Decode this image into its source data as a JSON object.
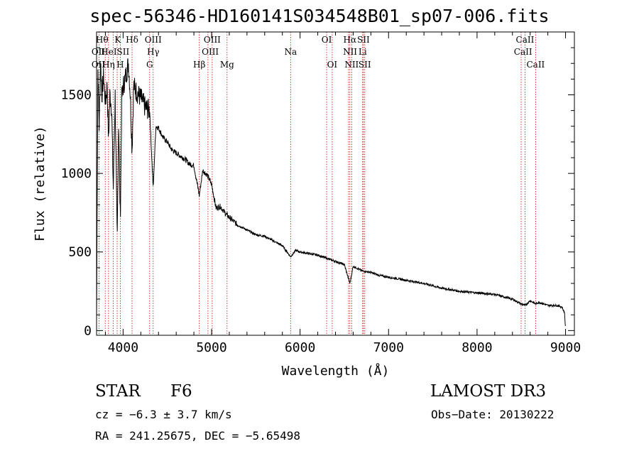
{
  "chart_data": {
    "type": "line",
    "title": "spec-56346-HD160141S034548B01_sp07-006.fits",
    "xlabel": "Wavelength (Å)",
    "ylabel": "Flux (relative)",
    "xlim": [
      3700,
      9100
    ],
    "ylim": [
      -30,
      1900
    ],
    "xticks": [
      4000,
      5000,
      6000,
      7000,
      8000,
      9000
    ],
    "yticks": [
      0,
      500,
      1000,
      1500
    ],
    "series": [
      {
        "name": "flux",
        "anchors": [
          [
            3700,
            50
          ],
          [
            3705,
            620
          ],
          [
            3715,
            1660
          ],
          [
            3730,
            1300
          ],
          [
            3745,
            1720
          ],
          [
            3760,
            1500
          ],
          [
            3780,
            1620
          ],
          [
            3800,
            1450
          ],
          [
            3820,
            1560
          ],
          [
            3835,
            1200
          ],
          [
            3850,
            1500
          ],
          [
            3870,
            1420
          ],
          [
            3889,
            900
          ],
          [
            3910,
            1500
          ],
          [
            3933,
            550
          ],
          [
            3950,
            1350
          ],
          [
            3968,
            700
          ],
          [
            3985,
            1480
          ],
          [
            4000,
            1550
          ],
          [
            4030,
            1620
          ],
          [
            4060,
            1700
          ],
          [
            4080,
            1520
          ],
          [
            4101,
            1150
          ],
          [
            4120,
            1560
          ],
          [
            4150,
            1520
          ],
          [
            4200,
            1480
          ],
          [
            4250,
            1420
          ],
          [
            4300,
            1400
          ],
          [
            4340,
            900
          ],
          [
            4370,
            1300
          ],
          [
            4400,
            1290
          ],
          [
            4450,
            1230
          ],
          [
            4500,
            1200
          ],
          [
            4550,
            1150
          ],
          [
            4600,
            1130
          ],
          [
            4650,
            1110
          ],
          [
            4700,
            1090
          ],
          [
            4750,
            1060
          ],
          [
            4800,
            1050
          ],
          [
            4861,
            860
          ],
          [
            4900,
            1020
          ],
          [
            4950,
            990
          ],
          [
            5000,
            930
          ],
          [
            5050,
            780
          ],
          [
            5100,
            790
          ],
          [
            5150,
            750
          ],
          [
            5200,
            720
          ],
          [
            5300,
            670
          ],
          [
            5400,
            640
          ],
          [
            5500,
            610
          ],
          [
            5600,
            600
          ],
          [
            5700,
            570
          ],
          [
            5800,
            540
          ],
          [
            5893,
            470
          ],
          [
            5950,
            510
          ],
          [
            6000,
            500
          ],
          [
            6100,
            490
          ],
          [
            6200,
            480
          ],
          [
            6300,
            460
          ],
          [
            6400,
            440
          ],
          [
            6500,
            420
          ],
          [
            6563,
            300
          ],
          [
            6600,
            410
          ],
          [
            6700,
            380
          ],
          [
            6800,
            370
          ],
          [
            6900,
            350
          ],
          [
            7000,
            340
          ],
          [
            7200,
            320
          ],
          [
            7400,
            300
          ],
          [
            7600,
            270
          ],
          [
            7800,
            250
          ],
          [
            8000,
            240
          ],
          [
            8200,
            230
          ],
          [
            8400,
            200
          ],
          [
            8498,
            170
          ],
          [
            8542,
            160
          ],
          [
            8600,
            190
          ],
          [
            8662,
            170
          ],
          [
            8700,
            180
          ],
          [
            8800,
            160
          ],
          [
            8900,
            160
          ],
          [
            8960,
            150
          ],
          [
            8990,
            110
          ],
          [
            9000,
            0
          ]
        ]
      }
    ],
    "lines_top": [
      {
        "x": 3727,
        "label": "Hθ"
      },
      {
        "x": 3798,
        "label": ""
      },
      {
        "x": 3835,
        "label": ""
      },
      {
        "x": 3889,
        "label": ""
      },
      {
        "x": 3933,
        "label": "K"
      },
      {
        "x": 3968,
        "label": ""
      },
      {
        "x": 4101,
        "label": "Hδ"
      },
      {
        "x": 4300,
        "label": ""
      },
      {
        "x": 4340,
        "label": "OIII"
      },
      {
        "x": 4861,
        "label": ""
      },
      {
        "x": 4959,
        "label": "OIII"
      },
      {
        "x": 5007,
        "label": ""
      },
      {
        "x": 5175,
        "label": ""
      },
      {
        "x": 5893,
        "label": ""
      },
      {
        "x": 6300,
        "label": "OI"
      },
      {
        "x": 6363,
        "label": ""
      },
      {
        "x": 6548,
        "label": ""
      },
      {
        "x": 6563,
        "label": "Hα"
      },
      {
        "x": 6583,
        "label": ""
      },
      {
        "x": 6707,
        "label": ""
      },
      {
        "x": 6716,
        "label": "SII"
      },
      {
        "x": 6731,
        "label": ""
      },
      {
        "x": 8498,
        "label": ""
      },
      {
        "x": 8542,
        "label": "CaII"
      },
      {
        "x": 8662,
        "label": ""
      }
    ],
    "line_labels": [
      {
        "x": 3762,
        "row": 0,
        "text": "Hθ"
      },
      {
        "x": 3940,
        "row": 0,
        "text": "K"
      },
      {
        "x": 4101,
        "row": 0,
        "text": "Hδ"
      },
      {
        "x": 4340,
        "row": 0,
        "text": "OIII"
      },
      {
        "x": 5007,
        "row": 0,
        "text": "OIII"
      },
      {
        "x": 6300,
        "row": 0,
        "text": "OI"
      },
      {
        "x": 6563,
        "row": 0,
        "text": "Hα"
      },
      {
        "x": 6716,
        "row": 0,
        "text": "SII"
      },
      {
        "x": 8542,
        "row": 0,
        "text": "CaII"
      },
      {
        "x": 3720,
        "row": 1,
        "text": "OII"
      },
      {
        "x": 3840,
        "row": 1,
        "text": "HeI"
      },
      {
        "x": 4000,
        "row": 1,
        "text": "SII"
      },
      {
        "x": 4340,
        "row": 1,
        "text": "Hγ"
      },
      {
        "x": 4985,
        "row": 1,
        "text": "OIII"
      },
      {
        "x": 5893,
        "row": 1,
        "text": "Na"
      },
      {
        "x": 6565,
        "row": 1,
        "text": "NII"
      },
      {
        "x": 6707,
        "row": 1,
        "text": "Li"
      },
      {
        "x": 8520,
        "row": 1,
        "text": "CaII"
      },
      {
        "x": 3720,
        "row": 2,
        "text": "OII"
      },
      {
        "x": 3835,
        "row": 2,
        "text": "Hη"
      },
      {
        "x": 3968,
        "row": 2,
        "text": "H"
      },
      {
        "x": 4300,
        "row": 2,
        "text": "G"
      },
      {
        "x": 4861,
        "row": 2,
        "text": "Hβ"
      },
      {
        "x": 5175,
        "row": 2,
        "text": "Mg"
      },
      {
        "x": 6363,
        "row": 2,
        "text": "OI"
      },
      {
        "x": 6583,
        "row": 2,
        "text": "NII"
      },
      {
        "x": 6731,
        "row": 2,
        "text": "SII"
      },
      {
        "x": 8662,
        "row": 2,
        "text": "CaII"
      }
    ]
  },
  "info": {
    "object_class": "STAR",
    "subclass": "F6",
    "survey": "LAMOST DR3",
    "cz": "cz = −6.3 ± 3.7 km/s",
    "obs_date": "Obs−Date: 20130222",
    "radec": "RA = 241.25675, DEC =  −5.65498"
  },
  "colors": {
    "line": "#000000",
    "marker": "#cc0000",
    "background": "#ffffff"
  }
}
